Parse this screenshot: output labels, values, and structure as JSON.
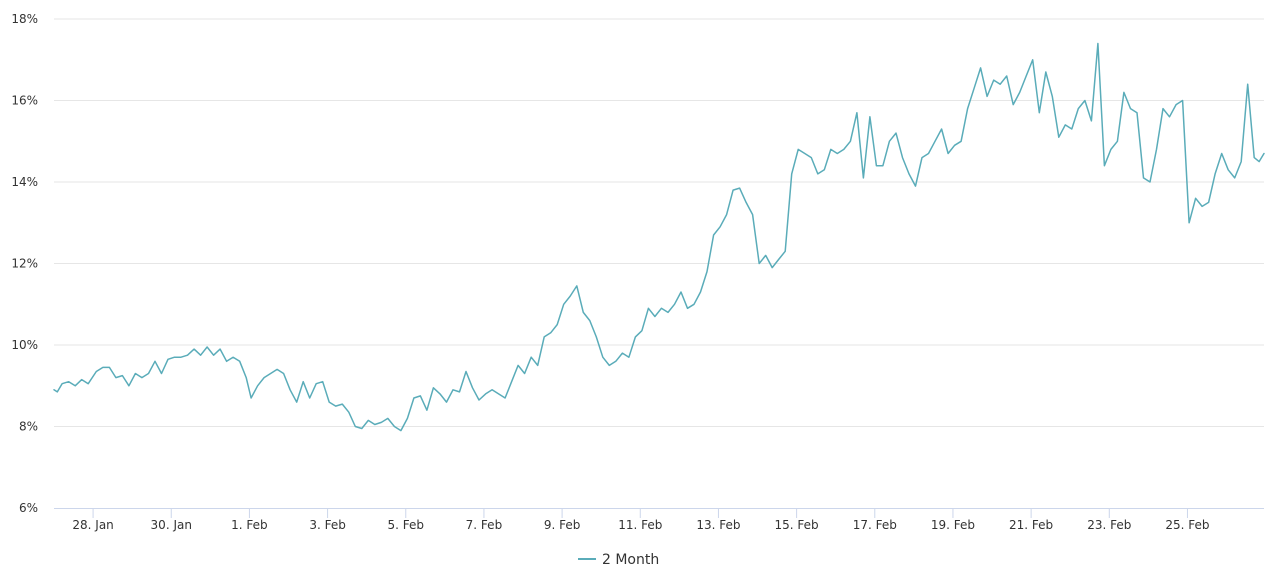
{
  "chart_data": {
    "type": "line",
    "title": "",
    "xlabel": "",
    "ylabel": "",
    "y_unit": "%",
    "ylim": [
      6,
      18
    ],
    "yticks": [
      6,
      8,
      10,
      12,
      14,
      16,
      18
    ],
    "ytick_labels": [
      "6%",
      "8%",
      "10%",
      "12%",
      "14%",
      "16%",
      "18%"
    ],
    "xlim": [
      "2024-01-27",
      "2024-02-26T23:00"
    ],
    "xticks": [
      "2024-01-28",
      "2024-01-30",
      "2024-02-01",
      "2024-02-03",
      "2024-02-05",
      "2024-02-07",
      "2024-02-09",
      "2024-02-11",
      "2024-02-13",
      "2024-02-15",
      "2024-02-17",
      "2024-02-19",
      "2024-02-21",
      "2024-02-23",
      "2024-02-25"
    ],
    "xtick_labels": [
      "28. Jan",
      "30. Jan",
      "1. Feb",
      "3. Feb",
      "5. Feb",
      "7. Feb",
      "9. Feb",
      "11. Feb",
      "13. Feb",
      "15. Feb",
      "17. Feb",
      "19. Feb",
      "21. Feb",
      "23. Feb",
      "25. Feb"
    ],
    "grid": true,
    "legend": "bottom-center",
    "series": [
      {
        "name": "2 Month",
        "color": "#5aacb9",
        "points": [
          [
            "2024-01-27T00:00",
            8.9
          ],
          [
            "2024-01-27T02:00",
            8.85
          ],
          [
            "2024-01-27T05:00",
            9.05
          ],
          [
            "2024-01-27T09:00",
            9.1
          ],
          [
            "2024-01-27T13:00",
            9.0
          ],
          [
            "2024-01-27T17:00",
            9.15
          ],
          [
            "2024-01-27T21:00",
            9.05
          ],
          [
            "2024-01-28T02:00",
            9.35
          ],
          [
            "2024-01-28T06:00",
            9.45
          ],
          [
            "2024-01-28T10:00",
            9.45
          ],
          [
            "2024-01-28T14:00",
            9.2
          ],
          [
            "2024-01-28T18:00",
            9.25
          ],
          [
            "2024-01-28T22:00",
            9.0
          ],
          [
            "2024-01-29T02:00",
            9.3
          ],
          [
            "2024-01-29T06:00",
            9.2
          ],
          [
            "2024-01-29T10:00",
            9.3
          ],
          [
            "2024-01-29T14:00",
            9.6
          ],
          [
            "2024-01-29T18:00",
            9.3
          ],
          [
            "2024-01-29T22:00",
            9.65
          ],
          [
            "2024-01-30T02:00",
            9.7
          ],
          [
            "2024-01-30T06:00",
            9.7
          ],
          [
            "2024-01-30T10:00",
            9.75
          ],
          [
            "2024-01-30T14:00",
            9.9
          ],
          [
            "2024-01-30T18:00",
            9.75
          ],
          [
            "2024-01-30T22:00",
            9.95
          ],
          [
            "2024-01-31T02:00",
            9.75
          ],
          [
            "2024-01-31T06:00",
            9.9
          ],
          [
            "2024-01-31T10:00",
            9.6
          ],
          [
            "2024-01-31T14:00",
            9.7
          ],
          [
            "2024-01-31T18:00",
            9.6
          ],
          [
            "2024-01-31T22:00",
            9.2
          ],
          [
            "2024-02-01T01:00",
            8.7
          ],
          [
            "2024-02-01T05:00",
            9.0
          ],
          [
            "2024-02-01T09:00",
            9.2
          ],
          [
            "2024-02-01T13:00",
            9.3
          ],
          [
            "2024-02-01T17:00",
            9.4
          ],
          [
            "2024-02-01T21:00",
            9.3
          ],
          [
            "2024-02-02T01:00",
            8.9
          ],
          [
            "2024-02-02T05:00",
            8.6
          ],
          [
            "2024-02-02T09:00",
            9.1
          ],
          [
            "2024-02-02T13:00",
            8.7
          ],
          [
            "2024-02-02T17:00",
            9.05
          ],
          [
            "2024-02-02T21:00",
            9.1
          ],
          [
            "2024-02-03T01:00",
            8.6
          ],
          [
            "2024-02-03T05:00",
            8.5
          ],
          [
            "2024-02-03T09:00",
            8.55
          ],
          [
            "2024-02-03T13:00",
            8.35
          ],
          [
            "2024-02-03T17:00",
            8.0
          ],
          [
            "2024-02-03T21:00",
            7.95
          ],
          [
            "2024-02-04T01:00",
            8.15
          ],
          [
            "2024-02-04T05:00",
            8.05
          ],
          [
            "2024-02-04T09:00",
            8.1
          ],
          [
            "2024-02-04T13:00",
            8.2
          ],
          [
            "2024-02-04T17:00",
            8.0
          ],
          [
            "2024-02-04T21:00",
            7.9
          ],
          [
            "2024-02-05T01:00",
            8.2
          ],
          [
            "2024-02-05T05:00",
            8.7
          ],
          [
            "2024-02-05T09:00",
            8.75
          ],
          [
            "2024-02-05T13:00",
            8.4
          ],
          [
            "2024-02-05T17:00",
            8.95
          ],
          [
            "2024-02-05T21:00",
            8.8
          ],
          [
            "2024-02-06T01:00",
            8.6
          ],
          [
            "2024-02-06T05:00",
            8.9
          ],
          [
            "2024-02-06T09:00",
            8.85
          ],
          [
            "2024-02-06T13:00",
            9.35
          ],
          [
            "2024-02-06T17:00",
            8.95
          ],
          [
            "2024-02-06T21:00",
            8.65
          ],
          [
            "2024-02-07T01:00",
            8.8
          ],
          [
            "2024-02-07T05:00",
            8.9
          ],
          [
            "2024-02-07T09:00",
            8.8
          ],
          [
            "2024-02-07T13:00",
            8.7
          ],
          [
            "2024-02-07T17:00",
            9.1
          ],
          [
            "2024-02-07T21:00",
            9.5
          ],
          [
            "2024-02-08T01:00",
            9.3
          ],
          [
            "2024-02-08T05:00",
            9.7
          ],
          [
            "2024-02-08T09:00",
            9.5
          ],
          [
            "2024-02-08T13:00",
            10.2
          ],
          [
            "2024-02-08T17:00",
            10.3
          ],
          [
            "2024-02-08T21:00",
            10.5
          ],
          [
            "2024-02-09T01:00",
            11.0
          ],
          [
            "2024-02-09T05:00",
            11.2
          ],
          [
            "2024-02-09T09:00",
            11.45
          ],
          [
            "2024-02-09T13:00",
            10.8
          ],
          [
            "2024-02-09T17:00",
            10.6
          ],
          [
            "2024-02-09T21:00",
            10.2
          ],
          [
            "2024-02-10T01:00",
            9.7
          ],
          [
            "2024-02-10T05:00",
            9.5
          ],
          [
            "2024-02-10T09:00",
            9.6
          ],
          [
            "2024-02-10T13:00",
            9.8
          ],
          [
            "2024-02-10T17:00",
            9.7
          ],
          [
            "2024-02-10T21:00",
            10.2
          ],
          [
            "2024-02-11T01:00",
            10.35
          ],
          [
            "2024-02-11T05:00",
            10.9
          ],
          [
            "2024-02-11T09:00",
            10.7
          ],
          [
            "2024-02-11T13:00",
            10.9
          ],
          [
            "2024-02-11T17:00",
            10.8
          ],
          [
            "2024-02-11T21:00",
            11.0
          ],
          [
            "2024-02-12T01:00",
            11.3
          ],
          [
            "2024-02-12T05:00",
            10.9
          ],
          [
            "2024-02-12T09:00",
            11.0
          ],
          [
            "2024-02-12T13:00",
            11.3
          ],
          [
            "2024-02-12T17:00",
            11.8
          ],
          [
            "2024-02-12T21:00",
            12.7
          ],
          [
            "2024-02-13T01:00",
            12.9
          ],
          [
            "2024-02-13T05:00",
            13.2
          ],
          [
            "2024-02-13T09:00",
            13.8
          ],
          [
            "2024-02-13T13:00",
            13.85
          ],
          [
            "2024-02-13T17:00",
            13.5
          ],
          [
            "2024-02-13T21:00",
            13.2
          ],
          [
            "2024-02-14T01:00",
            12.0
          ],
          [
            "2024-02-14T05:00",
            12.2
          ],
          [
            "2024-02-14T09:00",
            11.9
          ],
          [
            "2024-02-14T13:00",
            12.1
          ],
          [
            "2024-02-14T17:00",
            12.3
          ],
          [
            "2024-02-14T21:00",
            14.2
          ],
          [
            "2024-02-15T01:00",
            14.8
          ],
          [
            "2024-02-15T05:00",
            14.7
          ],
          [
            "2024-02-15T09:00",
            14.6
          ],
          [
            "2024-02-15T13:00",
            14.2
          ],
          [
            "2024-02-15T17:00",
            14.3
          ],
          [
            "2024-02-15T21:00",
            14.8
          ],
          [
            "2024-02-16T01:00",
            14.7
          ],
          [
            "2024-02-16T05:00",
            14.8
          ],
          [
            "2024-02-16T09:00",
            15.0
          ],
          [
            "2024-02-16T13:00",
            15.7
          ],
          [
            "2024-02-16T17:00",
            14.1
          ],
          [
            "2024-02-16T21:00",
            15.6
          ],
          [
            "2024-02-17T01:00",
            14.4
          ],
          [
            "2024-02-17T05:00",
            14.4
          ],
          [
            "2024-02-17T09:00",
            15.0
          ],
          [
            "2024-02-17T13:00",
            15.2
          ],
          [
            "2024-02-17T17:00",
            14.6
          ],
          [
            "2024-02-17T21:00",
            14.2
          ],
          [
            "2024-02-18T01:00",
            13.9
          ],
          [
            "2024-02-18T05:00",
            14.6
          ],
          [
            "2024-02-18T09:00",
            14.7
          ],
          [
            "2024-02-18T13:00",
            15.0
          ],
          [
            "2024-02-18T17:00",
            15.3
          ],
          [
            "2024-02-18T21:00",
            14.7
          ],
          [
            "2024-02-19T01:00",
            14.9
          ],
          [
            "2024-02-19T05:00",
            15.0
          ],
          [
            "2024-02-19T09:00",
            15.8
          ],
          [
            "2024-02-19T13:00",
            16.3
          ],
          [
            "2024-02-19T17:00",
            16.8
          ],
          [
            "2024-02-19T21:00",
            16.1
          ],
          [
            "2024-02-20T01:00",
            16.5
          ],
          [
            "2024-02-20T05:00",
            16.4
          ],
          [
            "2024-02-20T09:00",
            16.6
          ],
          [
            "2024-02-20T13:00",
            15.9
          ],
          [
            "2024-02-20T17:00",
            16.2
          ],
          [
            "2024-02-20T21:00",
            16.6
          ],
          [
            "2024-02-21T01:00",
            17.0
          ],
          [
            "2024-02-21T05:00",
            15.7
          ],
          [
            "2024-02-21T09:00",
            16.7
          ],
          [
            "2024-02-21T13:00",
            16.1
          ],
          [
            "2024-02-21T17:00",
            15.1
          ],
          [
            "2024-02-21T21:00",
            15.4
          ],
          [
            "2024-02-22T01:00",
            15.3
          ],
          [
            "2024-02-22T05:00",
            15.8
          ],
          [
            "2024-02-22T09:00",
            16.0
          ],
          [
            "2024-02-22T13:00",
            15.5
          ],
          [
            "2024-02-22T17:00",
            17.4
          ],
          [
            "2024-02-22T21:00",
            14.4
          ],
          [
            "2024-02-23T01:00",
            14.8
          ],
          [
            "2024-02-23T05:00",
            15.0
          ],
          [
            "2024-02-23T09:00",
            16.2
          ],
          [
            "2024-02-23T13:00",
            15.8
          ],
          [
            "2024-02-23T17:00",
            15.7
          ],
          [
            "2024-02-23T21:00",
            14.1
          ],
          [
            "2024-02-24T01:00",
            14.0
          ],
          [
            "2024-02-24T05:00",
            14.8
          ],
          [
            "2024-02-24T09:00",
            15.8
          ],
          [
            "2024-02-24T13:00",
            15.6
          ],
          [
            "2024-02-24T17:00",
            15.9
          ],
          [
            "2024-02-24T21:00",
            16.0
          ],
          [
            "2024-02-25T01:00",
            13.0
          ],
          [
            "2024-02-25T05:00",
            13.6
          ],
          [
            "2024-02-25T09:00",
            13.4
          ],
          [
            "2024-02-25T13:00",
            13.5
          ],
          [
            "2024-02-25T17:00",
            14.2
          ],
          [
            "2024-02-25T21:00",
            14.7
          ],
          [
            "2024-02-26T01:00",
            14.3
          ],
          [
            "2024-02-26T05:00",
            14.1
          ],
          [
            "2024-02-26T09:00",
            14.5
          ],
          [
            "2024-02-26T13:00",
            16.4
          ],
          [
            "2024-02-26T17:00",
            14.6
          ],
          [
            "2024-02-26T20:00",
            14.5
          ],
          [
            "2024-02-26T23:00",
            14.7
          ]
        ]
      }
    ]
  }
}
